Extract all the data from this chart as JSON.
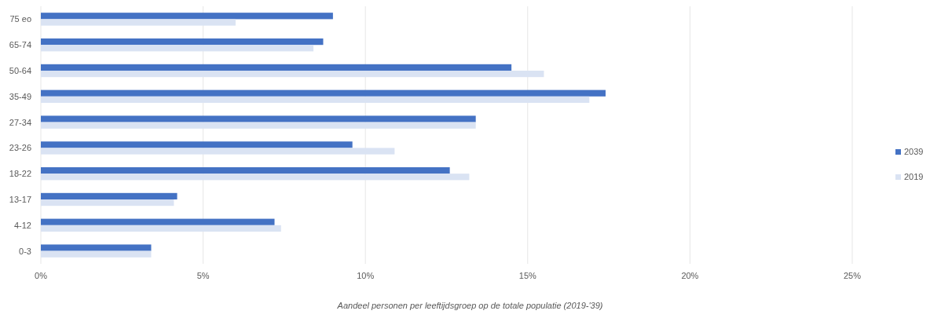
{
  "chart_data": {
    "type": "bar",
    "orientation": "horizontal",
    "xlabel": "Aandeel personen per leeftijdsgroep op de totale populatie (2019-'39)",
    "categories": [
      "75 eo",
      "65-74",
      "50-64",
      "35-49",
      "27-34",
      "23-26",
      "18-22",
      "13-17",
      "4-12",
      "0-3"
    ],
    "series": [
      {
        "name": "2039",
        "color": "#4472c4",
        "values": [
          9.0,
          8.7,
          14.5,
          17.4,
          13.4,
          9.6,
          12.6,
          4.2,
          7.2,
          3.4
        ]
      },
      {
        "name": "2019",
        "color": "#dae3f3",
        "values": [
          6.0,
          8.4,
          15.5,
          16.9,
          13.4,
          10.9,
          13.2,
          4.1,
          7.4,
          3.4
        ]
      }
    ],
    "xlim": [
      0,
      25
    ],
    "xticks": [
      {
        "value": 0,
        "label": "0%"
      },
      {
        "value": 5,
        "label": "5%"
      },
      {
        "value": 10,
        "label": "10%"
      },
      {
        "value": 15,
        "label": "15%"
      },
      {
        "value": 20,
        "label": "20%"
      },
      {
        "value": 25,
        "label": "25%"
      }
    ],
    "grid": "x",
    "legend": "right"
  }
}
